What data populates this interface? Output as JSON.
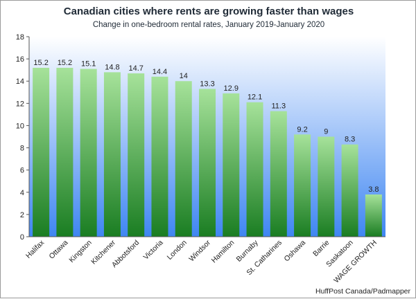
{
  "chart_data": {
    "type": "bar",
    "title": "Canadian cities where rents are growing faster than wages",
    "subtitle": "Change in one-bedroom rental rates, January 2019-January 2020",
    "xlabel": "",
    "ylabel": "",
    "ylim": [
      0,
      18
    ],
    "yticks": [
      0,
      2,
      4,
      6,
      8,
      10,
      12,
      14,
      16,
      18
    ],
    "grid": false,
    "legend": "none",
    "categories": [
      "Halifax",
      "Ottawa",
      "Kingston",
      "Kitchener",
      "Abbotsford",
      "Victoria",
      "London",
      "Windsor",
      "Hamilton",
      "Burnaby",
      "St. Catharines",
      "Oshawa",
      "Barrie",
      "Saskatoon",
      "WAGE GROWTH"
    ],
    "values": [
      15.2,
      15.2,
      15.1,
      14.8,
      14.7,
      14.4,
      14,
      13.3,
      12.9,
      12.1,
      11.3,
      9.2,
      9,
      8.3,
      3.8
    ],
    "source": "HuffPost Canada/Padmapper",
    "colors": {
      "bar_top": "#a6e29a",
      "bar_bottom": "#1a7d22",
      "plot_bg_top": "#ffffff",
      "plot_bg_bottom": "#3f86f2"
    }
  }
}
